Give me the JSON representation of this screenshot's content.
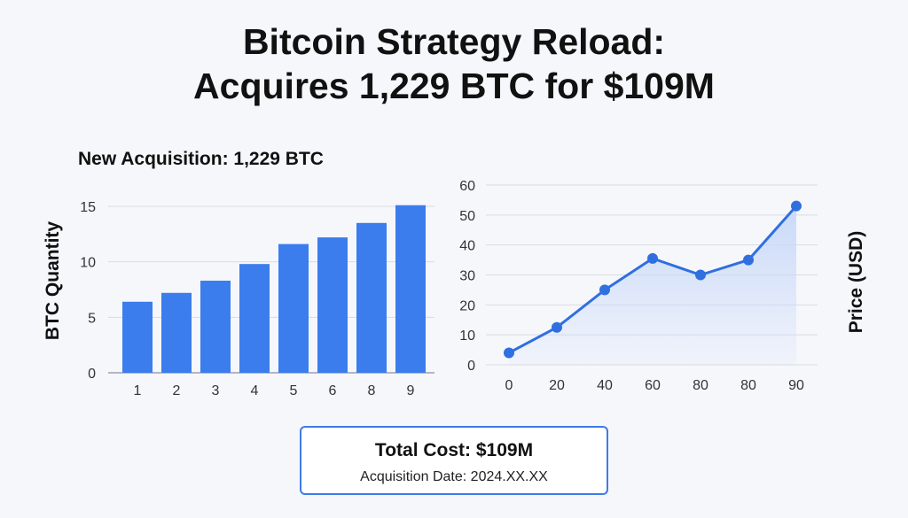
{
  "header": {
    "title_line1": "Bitcoin Strategy Reload:",
    "title_line2": "Acquires 1,229 BTC for $109M"
  },
  "left_panel": {
    "subtitle": "New Acquisition: 1,229 BTC"
  },
  "summary": {
    "total_cost": "Total Cost: $109M",
    "acquisition_date": "Acquisition Date: 2024.XX.XX"
  },
  "colors": {
    "bar": "#3b7ded",
    "line": "#2f6fe0",
    "fill": "#c7d8f8",
    "box_border": "#3d7be8"
  },
  "chart_data": [
    {
      "type": "bar",
      "title": "",
      "xlabel": "",
      "ylabel": "BTC Quantity",
      "categories": [
        "1",
        "2",
        "3",
        "4",
        "5",
        "6",
        "8",
        "9"
      ],
      "values": [
        6.4,
        7.2,
        8.3,
        9.8,
        11.6,
        12.2,
        13.5,
        15.1
      ],
      "ylim": [
        0,
        15
      ],
      "yticks": [
        0,
        5,
        10,
        15
      ],
      "grid": true
    },
    {
      "type": "area",
      "title": "",
      "xlabel": "",
      "ylabel": "Price (USD)",
      "categories": [
        "0",
        "20",
        "40",
        "60",
        "80",
        "80",
        "90"
      ],
      "values": [
        4,
        12.5,
        25,
        35.5,
        30,
        35,
        53
      ],
      "ylim": [
        0,
        60
      ],
      "yticks": [
        0,
        10,
        20,
        30,
        40,
        50,
        60
      ],
      "grid": true
    }
  ]
}
